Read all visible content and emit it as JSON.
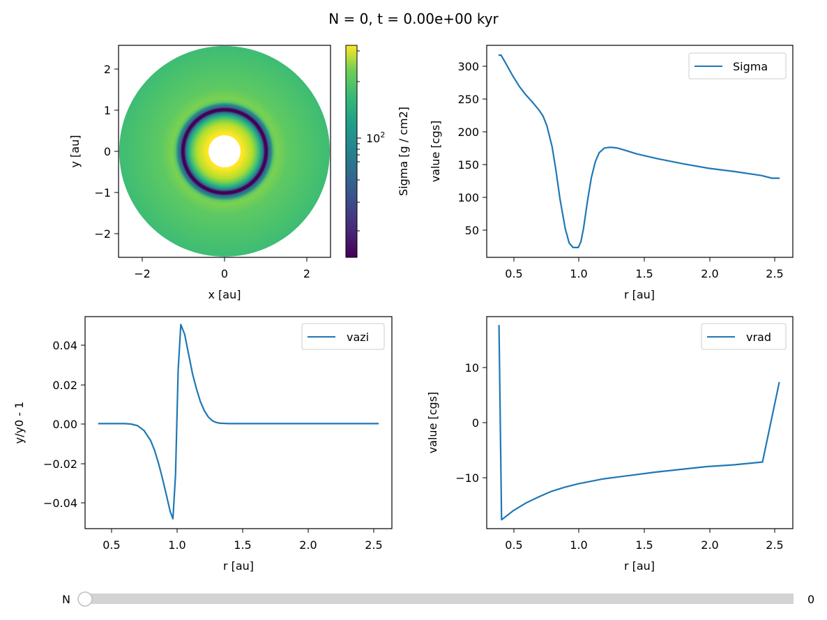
{
  "figure": {
    "title": "N = 0, t = 0.00e+00 kyr"
  },
  "colors": {
    "line": "#1f77b4",
    "slider_track": "#d3d3d3",
    "slider_knob": "#ffffff",
    "slider_knob_border": "#bfbfbf"
  },
  "slider": {
    "label": "N",
    "value": 0,
    "value_text": "0",
    "min": 0,
    "max": 1
  },
  "chart_data": [
    {
      "id": "sigma_map",
      "type": "heatmap",
      "xlabel": "x [au]",
      "ylabel": "y [au]",
      "xlim": [
        -2.56,
        2.56
      ],
      "ylim": [
        -2.56,
        2.56
      ],
      "xticks": [
        -2,
        0,
        2
      ],
      "xtick_labels": [
        "−2",
        "0",
        "2"
      ],
      "yticks": [
        -2,
        -1,
        0,
        1,
        2
      ],
      "ytick_labels": [
        "−2",
        "−1",
        "0",
        "1",
        "2"
      ],
      "inner_radius": 0.4,
      "outer_radius": 2.56,
      "colormap": "viridis",
      "colorbar": {
        "label": "Sigma  [g / cm2]",
        "scale": "log",
        "vmin": 21,
        "vmax": 315,
        "major_ticks": [
          100
        ],
        "major_tick_labels": [
          "10",
          "2"
        ],
        "minor_ticks": [
          30,
          40,
          50,
          60,
          70,
          80,
          90,
          200,
          300
        ]
      }
    },
    {
      "id": "sigma_profile",
      "type": "line",
      "xlabel": "r [au]",
      "ylabel": "value [cgs]",
      "xlim": [
        0.3,
        2.64
      ],
      "ylim": [
        6,
        330
      ],
      "xticks": [
        0.5,
        1.0,
        1.5,
        2.0,
        2.5
      ],
      "xtick_labels": [
        "0.5",
        "1.0",
        "1.5",
        "2.0",
        "2.5"
      ],
      "yticks": [
        50,
        100,
        150,
        200,
        250,
        300
      ],
      "ytick_labels": [
        "50",
        "100",
        "150",
        "200",
        "250",
        "300"
      ],
      "legend": {
        "position": "upper right",
        "entries": [
          "Sigma"
        ]
      },
      "series": [
        {
          "name": "Sigma",
          "x": [
            0.39,
            0.41,
            0.45,
            0.5,
            0.55,
            0.6,
            0.65,
            0.7,
            0.73,
            0.76,
            0.8,
            0.83,
            0.86,
            0.9,
            0.93,
            0.96,
            0.98,
            1.0,
            1.02,
            1.04,
            1.07,
            1.1,
            1.13,
            1.16,
            1.2,
            1.23,
            1.26,
            1.3,
            1.35,
            1.45,
            1.6,
            1.8,
            2.0,
            2.2,
            2.4,
            2.48,
            2.54
          ],
          "y": [
            315,
            315,
            301,
            283,
            267,
            254,
            243,
            231,
            222,
            207,
            175,
            138,
            95,
            50,
            28,
            21,
            21,
            21,
            30,
            50,
            92,
            128,
            152,
            166,
            173,
            174,
            174,
            173,
            170,
            164,
            157,
            149,
            142,
            137,
            131,
            127,
            127
          ]
        }
      ]
    },
    {
      "id": "vazi_profile",
      "type": "line",
      "xlabel": "r [au]",
      "ylabel": "y/y0 - 1",
      "xlim": [
        0.3,
        2.64
      ],
      "ylim": [
        -0.053,
        0.054
      ],
      "xticks": [
        0.5,
        1.0,
        1.5,
        2.0,
        2.5
      ],
      "xtick_labels": [
        "0.5",
        "1.0",
        "1.5",
        "2.0",
        "2.5"
      ],
      "yticks": [
        -0.04,
        -0.02,
        0.0,
        0.02,
        0.04
      ],
      "ytick_labels": [
        "−0.04",
        "−0.02",
        "0.00",
        "0.02",
        "0.04"
      ],
      "legend": {
        "position": "upper right",
        "entries": [
          "vazi"
        ]
      },
      "series": [
        {
          "name": "vazi",
          "x": [
            0.4,
            0.6,
            0.65,
            0.7,
            0.75,
            0.8,
            0.83,
            0.86,
            0.89,
            0.92,
            0.95,
            0.97,
            0.99,
            1.01,
            1.03,
            1.06,
            1.09,
            1.12,
            1.15,
            1.18,
            1.21,
            1.24,
            1.27,
            1.3,
            1.33,
            1.4,
            1.6,
            2.0,
            2.54
          ],
          "y": [
            0.0,
            0.0,
            -0.0002,
            -0.001,
            -0.0035,
            -0.0085,
            -0.0135,
            -0.02,
            -0.0275,
            -0.036,
            -0.0445,
            -0.048,
            -0.026,
            0.027,
            0.05,
            0.045,
            0.035,
            0.025,
            0.0175,
            0.011,
            0.0065,
            0.0033,
            0.0015,
            0.0006,
            0.0002,
            0.0,
            0.0,
            0.0,
            0.0
          ]
        }
      ]
    },
    {
      "id": "vrad_profile",
      "type": "line",
      "xlabel": "r [au]",
      "ylabel": "value [cgs]",
      "xlim": [
        0.295,
        2.665
      ],
      "ylim": [
        -19.0,
        18.9
      ],
      "xticks": [
        0.5,
        1.0,
        1.5,
        2.0,
        2.5
      ],
      "xtick_labels": [
        "0.5",
        "1.0",
        "1.5",
        "2.0",
        "2.5"
      ],
      "yticks": [
        -10,
        0,
        10
      ],
      "ytick_labels": [
        "−10",
        "0",
        "10"
      ],
      "legend": {
        "position": "upper right",
        "entries": [
          "vrad"
        ]
      },
      "series": [
        {
          "name": "vrad",
          "x": [
            0.39,
            0.41,
            0.45,
            0.5,
            0.6,
            0.7,
            0.8,
            0.9,
            1.0,
            1.2,
            1.4,
            1.6,
            1.8,
            2.0,
            2.2,
            2.43,
            2.56
          ],
          "y": [
            17.4,
            -17.4,
            -16.7,
            -15.8,
            -14.4,
            -13.3,
            -12.3,
            -11.6,
            -11.0,
            -10.1,
            -9.5,
            -8.9,
            -8.4,
            -7.9,
            -7.6,
            -7.1,
            7.2
          ]
        }
      ]
    }
  ]
}
